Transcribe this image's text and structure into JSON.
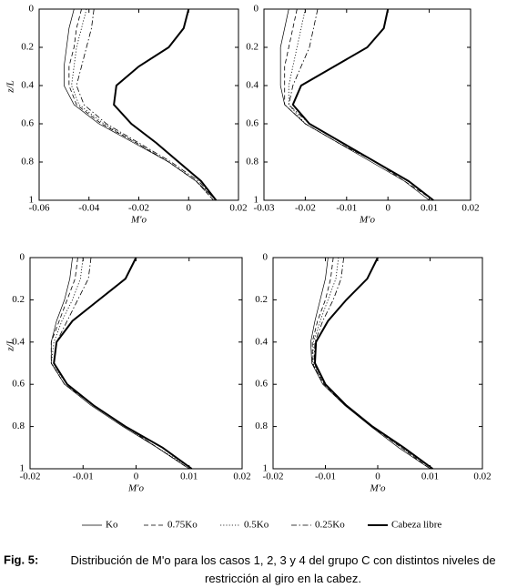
{
  "chart_data": [
    {
      "type": "line",
      "xlabel": "M'o",
      "ylabel": "z/L",
      "xlim": [
        -0.06,
        0.02
      ],
      "xticks": [
        -0.06,
        -0.04,
        -0.02,
        0,
        0.02
      ],
      "ylim": [
        0,
        1
      ],
      "yticks": [
        0,
        0.2,
        0.4,
        0.6,
        0.8,
        1
      ],
      "y_inverted": true,
      "y": [
        0,
        0.1,
        0.2,
        0.3,
        0.4,
        0.5,
        0.6,
        0.7,
        0.8,
        0.9,
        1
      ],
      "series": [
        {
          "name": "Ko",
          "color": "#000000",
          "style": "solid",
          "width": 0.7,
          "values": [
            -0.046,
            -0.048,
            -0.049,
            -0.05,
            -0.05,
            -0.046,
            -0.036,
            -0.022,
            -0.008,
            0.003,
            0.011
          ]
        },
        {
          "name": "0.75Ko",
          "color": "#000000",
          "style": "dashed",
          "width": 0.8,
          "values": [
            -0.043,
            -0.045,
            -0.046,
            -0.048,
            -0.048,
            -0.045,
            -0.035,
            -0.021,
            -0.008,
            0.003,
            0.01
          ]
        },
        {
          "name": "0.5Ko",
          "color": "#000000",
          "style": "dotted",
          "width": 0.8,
          "values": [
            -0.041,
            -0.043,
            -0.045,
            -0.046,
            -0.047,
            -0.044,
            -0.034,
            -0.021,
            -0.008,
            0.003,
            0.01
          ]
        },
        {
          "name": "0.25Ko",
          "color": "#000000",
          "style": "dashdot",
          "width": 0.8,
          "values": [
            -0.038,
            -0.039,
            -0.041,
            -0.043,
            -0.045,
            -0.042,
            -0.033,
            -0.02,
            -0.007,
            0.004,
            0.011
          ]
        },
        {
          "name": "Cabeza libre",
          "color": "#000000",
          "style": "solid",
          "width": 2,
          "values": [
            0,
            -0.002,
            -0.008,
            -0.02,
            -0.029,
            -0.03,
            -0.023,
            -0.013,
            -0.004,
            0.005,
            0.011
          ]
        }
      ]
    },
    {
      "type": "line",
      "xlabel": "M'o",
      "xlim": [
        -0.03,
        0.02
      ],
      "xticks": [
        -0.03,
        -0.02,
        -0.01,
        0,
        0.01,
        0.02
      ],
      "ylim": [
        0,
        1
      ],
      "yticks": [
        0,
        0.2,
        0.4,
        0.6,
        0.8,
        1
      ],
      "y_inverted": true,
      "y": [
        0,
        0.1,
        0.2,
        0.3,
        0.4,
        0.5,
        0.6,
        0.7,
        0.8,
        0.9,
        1
      ],
      "series": [
        {
          "color": "#000000",
          "style": "solid",
          "width": 0.7,
          "values": [
            -0.024,
            -0.025,
            -0.026,
            -0.026,
            -0.026,
            -0.025,
            -0.02,
            -0.012,
            -0.004,
            0.004,
            0.01
          ]
        },
        {
          "color": "#000000",
          "style": "dashed",
          "width": 0.8,
          "values": [
            -0.022,
            -0.023,
            -0.024,
            -0.025,
            -0.025,
            -0.025,
            -0.02,
            -0.012,
            -0.003,
            0.004,
            0.011
          ]
        },
        {
          "color": "#000000",
          "style": "dotted",
          "width": 0.8,
          "values": [
            -0.02,
            -0.021,
            -0.022,
            -0.023,
            -0.024,
            -0.024,
            -0.02,
            -0.012,
            -0.003,
            0.005,
            0.011
          ]
        },
        {
          "color": "#000000",
          "style": "dashdot",
          "width": 0.8,
          "values": [
            -0.017,
            -0.018,
            -0.019,
            -0.021,
            -0.023,
            -0.024,
            -0.019,
            -0.011,
            -0.003,
            0.005,
            0.011
          ]
        },
        {
          "color": "#000000",
          "style": "solid",
          "width": 2,
          "values": [
            0,
            -0.001,
            -0.005,
            -0.013,
            -0.021,
            -0.023,
            -0.019,
            -0.011,
            -0.003,
            0.005,
            0.011
          ]
        }
      ]
    },
    {
      "type": "line",
      "xlabel": "M'o",
      "ylabel": "z/L",
      "xlim": [
        -0.02,
        0.02
      ],
      "xticks": [
        -0.02,
        -0.01,
        0,
        0.01,
        0.02
      ],
      "ylim": [
        0,
        1
      ],
      "yticks": [
        0,
        0.2,
        0.4,
        0.6,
        0.8,
        1
      ],
      "y_inverted": true,
      "y": [
        0,
        0.1,
        0.2,
        0.3,
        0.4,
        0.5,
        0.6,
        0.7,
        0.8,
        0.9,
        1
      ],
      "series": [
        {
          "color": "#000000",
          "style": "solid",
          "width": 0.7,
          "values": [
            -0.012,
            -0.0125,
            -0.0135,
            -0.015,
            -0.016,
            -0.016,
            -0.0135,
            -0.0085,
            -0.0025,
            0.004,
            0.01
          ]
        },
        {
          "color": "#000000",
          "style": "dashed",
          "width": 0.8,
          "values": [
            -0.011,
            -0.0115,
            -0.013,
            -0.0145,
            -0.016,
            -0.016,
            -0.0135,
            -0.008,
            -0.002,
            0.004,
            0.01
          ]
        },
        {
          "color": "#000000",
          "style": "dotted",
          "width": 0.8,
          "values": [
            -0.01,
            -0.0105,
            -0.012,
            -0.014,
            -0.0155,
            -0.016,
            -0.013,
            -0.008,
            -0.002,
            0.004,
            0.0105
          ]
        },
        {
          "color": "#000000",
          "style": "dashdot",
          "width": 0.8,
          "values": [
            -0.0085,
            -0.009,
            -0.011,
            -0.013,
            -0.015,
            -0.0155,
            -0.013,
            -0.008,
            -0.002,
            0.005,
            0.0105
          ]
        },
        {
          "color": "#000000",
          "style": "solid",
          "width": 2,
          "values": [
            0,
            -0.002,
            -0.007,
            -0.012,
            -0.015,
            -0.0155,
            -0.013,
            -0.008,
            -0.002,
            0.005,
            0.0105
          ]
        }
      ]
    },
    {
      "type": "line",
      "xlabel": "M'o",
      "xlim": [
        -0.02,
        0.02
      ],
      "xticks": [
        -0.02,
        -0.01,
        0,
        0.01,
        0.02
      ],
      "ylim": [
        0,
        1
      ],
      "yticks": [
        0,
        0.2,
        0.4,
        0.6,
        0.8,
        1
      ],
      "y_inverted": true,
      "y": [
        0,
        0.1,
        0.2,
        0.3,
        0.4,
        0.5,
        0.6,
        0.7,
        0.8,
        0.9,
        1
      ],
      "series": [
        {
          "color": "#000000",
          "style": "solid",
          "width": 0.7,
          "values": [
            -0.0095,
            -0.01,
            -0.011,
            -0.012,
            -0.0128,
            -0.0126,
            -0.0105,
            -0.0063,
            -0.0013,
            0.004,
            0.01
          ]
        },
        {
          "color": "#000000",
          "style": "dashed",
          "width": 0.8,
          "values": [
            -0.0085,
            -0.009,
            -0.01,
            -0.0115,
            -0.0125,
            -0.0125,
            -0.0103,
            -0.0062,
            -0.0012,
            0.0045,
            0.01
          ]
        },
        {
          "color": "#000000",
          "style": "dotted",
          "width": 0.8,
          "values": [
            -0.0075,
            -0.008,
            -0.0095,
            -0.011,
            -0.0123,
            -0.0124,
            -0.0102,
            -0.006,
            -0.001,
            0.0045,
            0.0105
          ]
        },
        {
          "color": "#000000",
          "style": "dashdot",
          "width": 0.8,
          "values": [
            -0.0065,
            -0.007,
            -0.0085,
            -0.0105,
            -0.012,
            -0.0122,
            -0.01,
            -0.006,
            -0.001,
            0.005,
            0.0105
          ]
        },
        {
          "color": "#000000",
          "style": "solid",
          "width": 2,
          "values": [
            0,
            -0.002,
            -0.006,
            -0.0095,
            -0.0118,
            -0.012,
            -0.01,
            -0.006,
            -0.001,
            0.005,
            0.0105
          ]
        }
      ]
    }
  ],
  "caption": {
    "label": "Fig. 5:",
    "text": "Distribución de M'o para los casos 1, 2, 3 y 4 del grupo C con distintos niveles de restricción al giro en la cabez."
  }
}
